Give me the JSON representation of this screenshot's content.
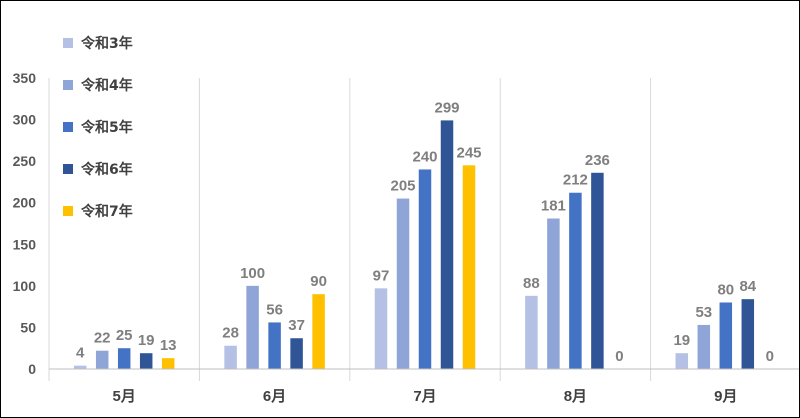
{
  "chart_data": {
    "type": "bar",
    "categories": [
      "5月",
      "6月",
      "7月",
      "8月",
      "9月"
    ],
    "series": [
      {
        "name": "令和3年",
        "color": "#b4c0e4",
        "values": [
          4,
          28,
          97,
          88,
          19
        ]
      },
      {
        "name": "令和4年",
        "color": "#8fa5d8",
        "values": [
          22,
          100,
          205,
          181,
          53
        ]
      },
      {
        "name": "令和5年",
        "color": "#4472c4",
        "values": [
          25,
          56,
          240,
          212,
          80
        ]
      },
      {
        "name": "令和6年",
        "color": "#2f5597",
        "values": [
          19,
          37,
          299,
          236,
          84
        ]
      },
      {
        "name": "令和7年",
        "color": "#ffc000",
        "values": [
          13,
          90,
          245,
          0,
          0
        ]
      }
    ],
    "ylim": [
      0,
      350
    ],
    "yticks": [
      0,
      50,
      100,
      150,
      200,
      250,
      300,
      350
    ],
    "legend_position": "top-left",
    "grid": "vertical category separators only"
  }
}
